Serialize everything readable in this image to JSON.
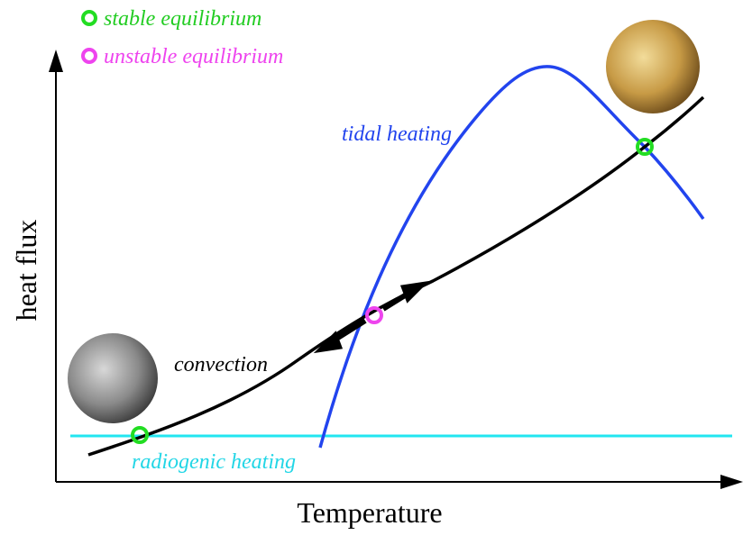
{
  "legend": {
    "stable": "stable equilibrium",
    "unstable": "unstable equilibrium"
  },
  "axes": {
    "x_label": "Temperature",
    "y_label": "heat flux"
  },
  "curves": {
    "tidal": "tidal heating",
    "convection": "convection",
    "radiogenic": "radiogenic heating"
  }
}
